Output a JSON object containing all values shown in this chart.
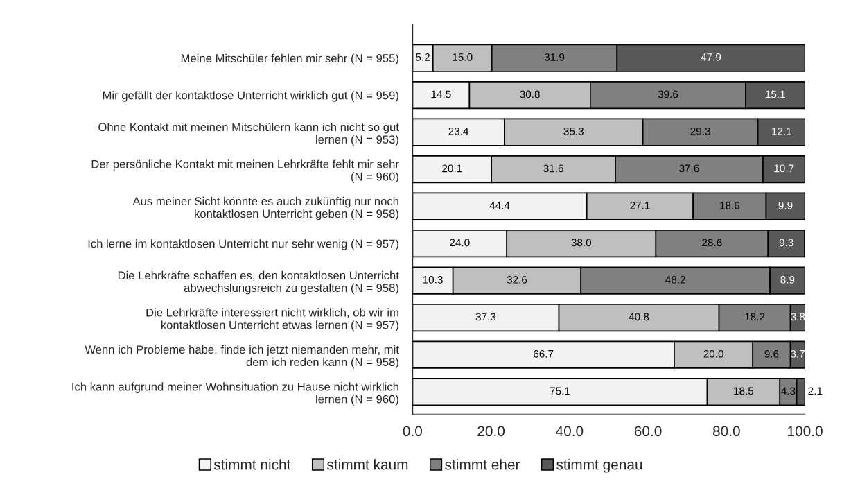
{
  "chart_data": {
    "type": "bar",
    "orientation": "horizontal",
    "stacked": true,
    "categories": [
      "Meine Mitschüler fehlen mir sehr (N = 955)",
      "Mir gefällt der kontaktlose Unterricht wirklich gut (N = 959)",
      "Ohne Kontakt mit meinen Mitschülern kann ich nicht so gut lernen (N = 953)",
      "Der persönliche Kontakt mit meinen Lehrkräfte fehlt mir sehr (N = 960)",
      "Aus meiner Sicht könnte es auch zukünftig nur noch kontaktlosen Unterricht geben (N = 958)",
      "Ich lerne im kontaktlosen Unterricht nur sehr wenig (N = 957)",
      "Die Lehrkräfte schaffen es, den kontaktlosen Unterricht abwechslungsreich zu gestalten (N = 958)",
      "Die Lehrkräfte interessiert nicht wirklich, ob wir im kontaktlosen Unterricht etwas lernen (N = 957)",
      "Wenn ich Probleme habe, finde ich jetzt niemanden mehr, mit dem ich reden kann (N = 958)",
      "Ich kann aufgrund meiner Wohnsituation zu Hause nicht wirklich lernen (N = 960)"
    ],
    "series": [
      {
        "name": "stimmt nicht",
        "color": "#f2f2f2",
        "values": [
          5.2,
          14.5,
          23.4,
          20.1,
          44.4,
          24.0,
          10.3,
          37.3,
          66.7,
          75.1
        ],
        "value_labels": [
          "5.2",
          "14.5",
          "23.4",
          "20.1",
          "44.4",
          "24.0",
          "10.3",
          "37.3",
          "66.7",
          "75.1"
        ]
      },
      {
        "name": "stimmt kaum",
        "color": "#bfbfbf",
        "values": [
          15.0,
          30.8,
          35.3,
          31.6,
          27.1,
          38.0,
          32.6,
          40.8,
          20.0,
          18.5
        ],
        "value_labels": [
          "15.0",
          "30.8",
          "35.3",
          "31.6",
          "27.1",
          "38.0",
          "32.6",
          "40.8",
          "20.0",
          "18.5"
        ]
      },
      {
        "name": "stimmt eher",
        "color": "#808080",
        "values": [
          31.9,
          39.6,
          29.3,
          37.6,
          18.6,
          28.6,
          48.2,
          18.2,
          9.6,
          4.3
        ],
        "value_labels": [
          "31.9",
          "39.6",
          "29.3",
          "37.6",
          "18.6",
          "28.6",
          "48.2",
          "18.2",
          "9.6",
          "4.3"
        ]
      },
      {
        "name": "stimmt genau",
        "color": "#595959",
        "values": [
          47.9,
          15.1,
          12.1,
          10.7,
          9.9,
          9.3,
          8.9,
          3.8,
          3.7,
          2.1
        ],
        "value_labels": [
          "47.9",
          "15.1",
          "12.1",
          "10.7",
          "9.9",
          "9.3",
          "8.9",
          "3.8",
          "3.7",
          "2.1"
        ]
      }
    ],
    "xlim": [
      0,
      100
    ],
    "xticks": [
      {
        "value": 0,
        "label": "0.0"
      },
      {
        "value": 20,
        "label": "20.0"
      },
      {
        "value": 40,
        "label": "40.0"
      },
      {
        "value": 60,
        "label": "60.0"
      },
      {
        "value": 80,
        "label": "80.0"
      },
      {
        "value": 100,
        "label": "100.0"
      }
    ],
    "grid": false,
    "legend": "bottom"
  }
}
